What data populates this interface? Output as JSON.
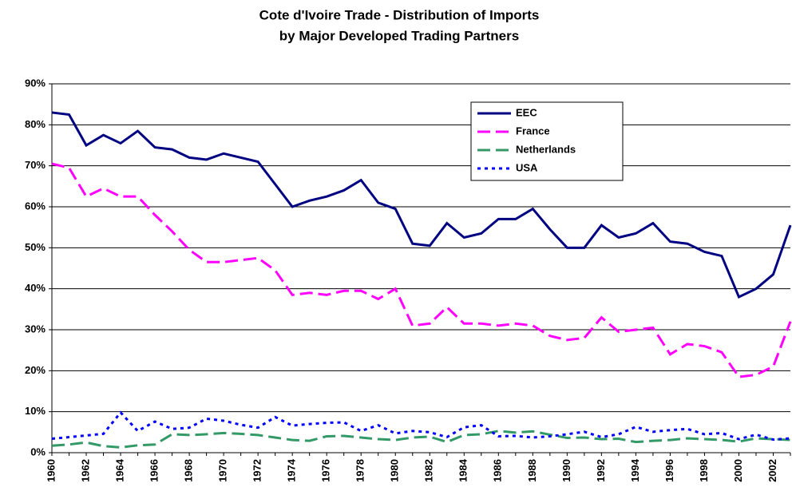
{
  "chart_data": {
    "type": "line",
    "title": "Cote d'Ivoire Trade - Distribution of Imports",
    "subtitle": "by Major Developed Trading Partners",
    "categories": [
      "1960",
      null,
      "1962",
      null,
      "1964",
      null,
      "1966",
      null,
      "1968",
      null,
      "1970",
      null,
      "1972",
      null,
      "1974",
      null,
      "1976",
      null,
      "1978",
      null,
      "1980",
      null,
      "1982",
      null,
      "1984",
      null,
      "1986",
      null,
      "1988",
      null,
      "1990",
      null,
      "1992",
      null,
      "1994",
      null,
      "1996",
      null,
      "1998",
      null,
      "2000",
      null,
      "2002",
      null
    ],
    "series": [
      {
        "name": "EEC",
        "color": "#000080",
        "dash": "solid",
        "values": [
          83,
          82.5,
          75,
          77.5,
          75.5,
          78.5,
          74.5,
          74,
          72,
          71.5,
          73,
          72,
          71,
          65.5,
          60,
          61.5,
          62.5,
          64,
          66.5,
          61,
          59.5,
          51,
          50.5,
          56,
          52.5,
          53.5,
          57,
          57,
          59.5,
          54.5,
          50,
          50,
          55.5,
          52.5,
          53.5,
          56,
          51.5,
          51,
          49,
          48,
          38,
          40,
          43.5,
          55.5
        ]
      },
      {
        "name": "France",
        "color": "#ff00ff",
        "dash": "dashed",
        "values": [
          70.5,
          69.5,
          62.5,
          64.5,
          62.5,
          62.5,
          58,
          54,
          49.5,
          46.5,
          46.5,
          47,
          47.5,
          44.5,
          38.5,
          39,
          38.5,
          39.5,
          39.5,
          37.5,
          40,
          31,
          31.5,
          35.5,
          31.5,
          31.5,
          31,
          31.5,
          31,
          28.5,
          27.5,
          28,
          33,
          29.5,
          30,
          30.5,
          24,
          26.5,
          26,
          24.5,
          18.5,
          19,
          21,
          32
        ]
      },
      {
        "name": "Netherlands",
        "color": "#339966",
        "dash": "dashed",
        "values": [
          1.7,
          2,
          2.5,
          1.6,
          1.3,
          1.8,
          2,
          4.5,
          4.3,
          4.5,
          4.8,
          4.6,
          4.3,
          3.7,
          3.1,
          2.9,
          4,
          4.1,
          3.7,
          3.3,
          3.1,
          3.7,
          3.9,
          2.6,
          4.3,
          4.5,
          5.3,
          4.9,
          5.2,
          4.4,
          3.6,
          3.7,
          3.3,
          3.4,
          2.6,
          2.9,
          3.1,
          3.5,
          3.3,
          3.1,
          2.7,
          3.5,
          3.3,
          3.1
        ]
      },
      {
        "name": "USA",
        "color": "#0000ff",
        "dash": "dotted",
        "values": [
          3.4,
          3.8,
          4.2,
          4.6,
          9.8,
          5.3,
          7.6,
          5.8,
          6.1,
          8.3,
          7.8,
          6.8,
          6.1,
          8.7,
          6.6,
          7.0,
          7.3,
          7.4,
          5.3,
          6.7,
          4.7,
          5.3,
          5.0,
          3.8,
          6.2,
          6.7,
          4.0,
          4.1,
          3.7,
          4.0,
          4.5,
          5.1,
          3.8,
          4.5,
          6.3,
          5.1,
          5.5,
          5.8,
          4.5,
          4.8,
          3.3,
          4.4,
          3.2,
          3.5
        ]
      }
    ],
    "ylim": [
      0,
      90
    ],
    "yticks": [
      {
        "value": 0,
        "label": "0%"
      },
      {
        "value": 10,
        "label": "10%"
      },
      {
        "value": 20,
        "label": "20%"
      },
      {
        "value": 30,
        "label": "30%"
      },
      {
        "value": 40,
        "label": "40%"
      },
      {
        "value": 50,
        "label": "50%"
      },
      {
        "value": 60,
        "label": "60%"
      },
      {
        "value": 70,
        "label": "70%"
      },
      {
        "value": 80,
        "label": "80%"
      },
      {
        "value": 90,
        "label": "90%"
      }
    ],
    "grid": true,
    "legend": "top-right"
  }
}
